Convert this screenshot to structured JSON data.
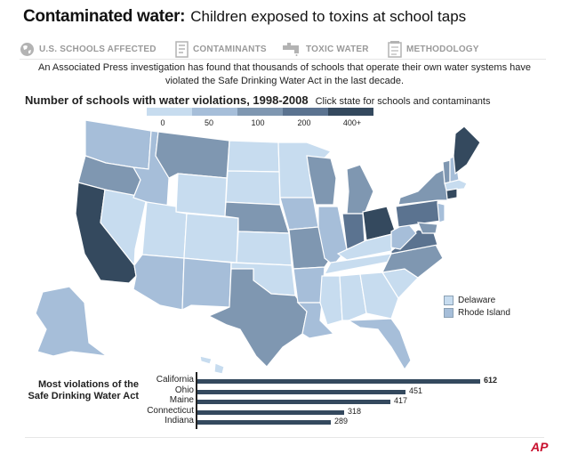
{
  "header": {
    "title_bold": "Contaminated water:",
    "title_rest": "Children exposed to toxins at school taps"
  },
  "tabs": [
    {
      "label": "U.S. SCHOOLS AFFECTED",
      "icon": "globe-icon"
    },
    {
      "label": "CONTAMINANTS",
      "icon": "document-icon"
    },
    {
      "label": "TOXIC WATER",
      "icon": "faucet-icon"
    },
    {
      "label": "METHODOLOGY",
      "icon": "notepad-icon"
    }
  ],
  "intro": "An Associated Press investigation has found that thousands of schools that operate their own water systems have violated the Safe Drinking Water Act in the last decade.",
  "map": {
    "heading": "Number of schools with water violations, 1998-2008",
    "hint": "Click state for schools and contaminants",
    "legend": {
      "ticks": [
        "0",
        "50",
        "100",
        "200",
        "400+"
      ],
      "colors": [
        "#c7dcef",
        "#a6bed9",
        "#7f97b1",
        "#5b7390",
        "#34495e"
      ]
    },
    "small_states": [
      {
        "label": "Delaware",
        "color": "#c7dcef"
      },
      {
        "label": "Rhode Island",
        "color": "#a6bed9"
      }
    ]
  },
  "chart_data": {
    "type": "bar",
    "title": "Most violations of the Safe Drinking Water Act",
    "categories": [
      "California",
      "Ohio",
      "Maine",
      "Connecticut",
      "Indiana"
    ],
    "values": [
      612,
      451,
      417,
      318,
      289
    ],
    "value_labels": [
      "612",
      "451",
      "417",
      "318",
      "289"
    ],
    "xlim": [
      0,
      612
    ]
  },
  "footer": {
    "logo": "AP"
  }
}
